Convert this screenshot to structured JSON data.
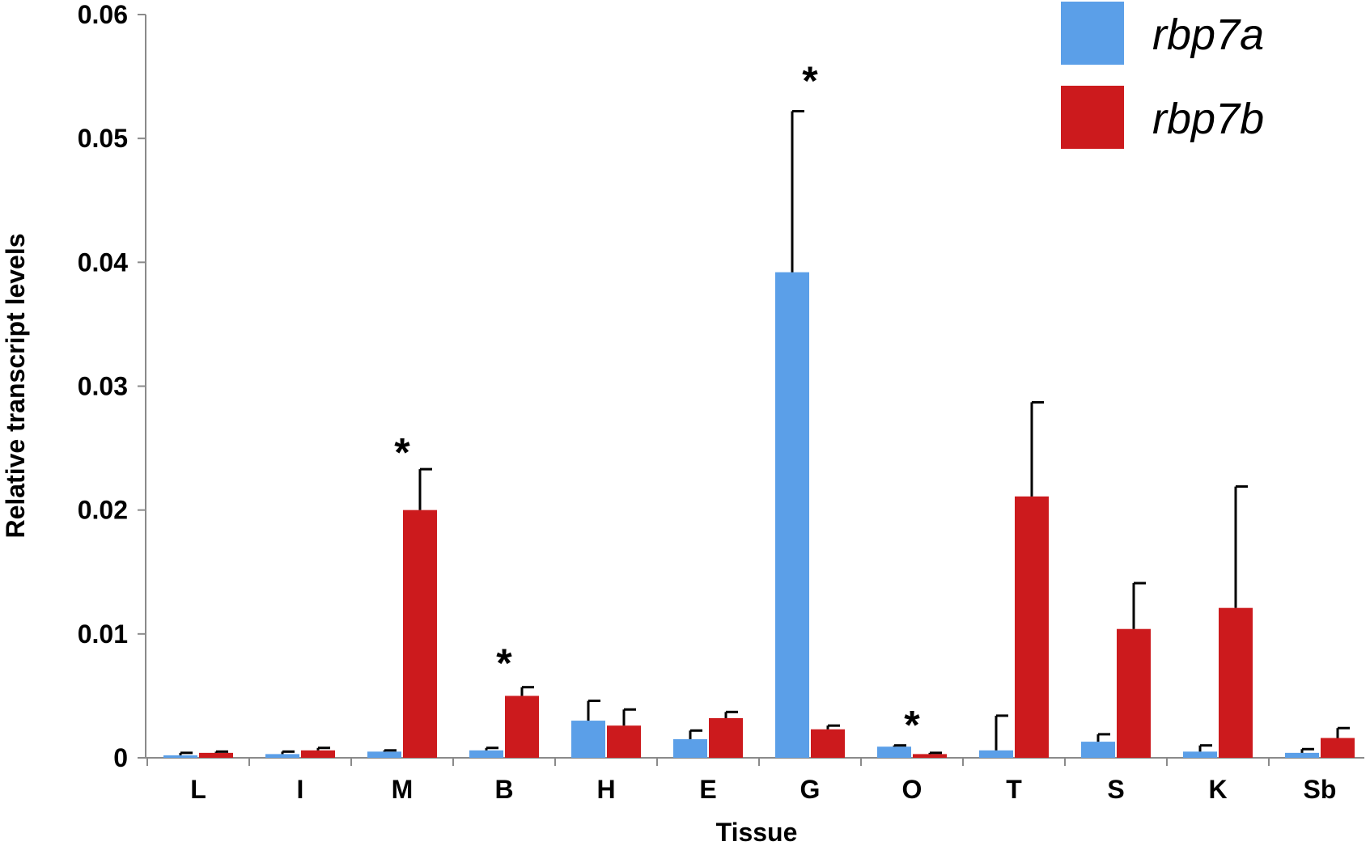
{
  "chart_data": {
    "type": "bar",
    "title": "",
    "xlabel": "Tissue",
    "ylabel": "Relative transcript levels",
    "ylim": [
      0,
      0.06
    ],
    "yticks": [
      0,
      0.01,
      0.02,
      0.03,
      0.04,
      0.05,
      0.06
    ],
    "ytick_labels": [
      "0",
      "0.01",
      "0.02",
      "0.03",
      "0.04",
      "0.05",
      "0.06"
    ],
    "grid": false,
    "legend_position": "top-right",
    "categories": [
      "L",
      "I",
      "M",
      "B",
      "H",
      "E",
      "G",
      "O",
      "T",
      "S",
      "K",
      "Sb"
    ],
    "series": [
      {
        "name": "rbp7a",
        "color": "#5B9FE8",
        "values": [
          0.0002,
          0.0003,
          0.0005,
          0.0006,
          0.003,
          0.0015,
          0.0392,
          0.0009,
          0.0006,
          0.0013,
          0.0005,
          0.0004
        ],
        "errors": [
          0.0002,
          0.0002,
          0.0001,
          0.0002,
          0.0016,
          0.0007,
          0.013,
          0.0001,
          0.0028,
          0.0006,
          0.0005,
          0.0003
        ]
      },
      {
        "name": "rbp7b",
        "color": "#CC1A1D",
        "values": [
          0.0004,
          0.0006,
          0.02,
          0.005,
          0.0026,
          0.0032,
          0.0023,
          0.0003,
          0.0211,
          0.0104,
          0.0121,
          0.0016
        ],
        "errors": [
          0.0001,
          0.0002,
          0.0033,
          0.0007,
          0.0013,
          0.0005,
          0.0003,
          0.0001,
          0.0076,
          0.0037,
          0.0098,
          0.0008
        ]
      }
    ],
    "annotations": [
      {
        "text": "*",
        "category": "M",
        "y": 0.0255
      },
      {
        "text": "*",
        "category": "B",
        "y": 0.0085
      },
      {
        "text": "*",
        "category": "G",
        "y": 0.0555
      },
      {
        "text": "*",
        "category": "O",
        "y": 0.0035
      }
    ]
  }
}
